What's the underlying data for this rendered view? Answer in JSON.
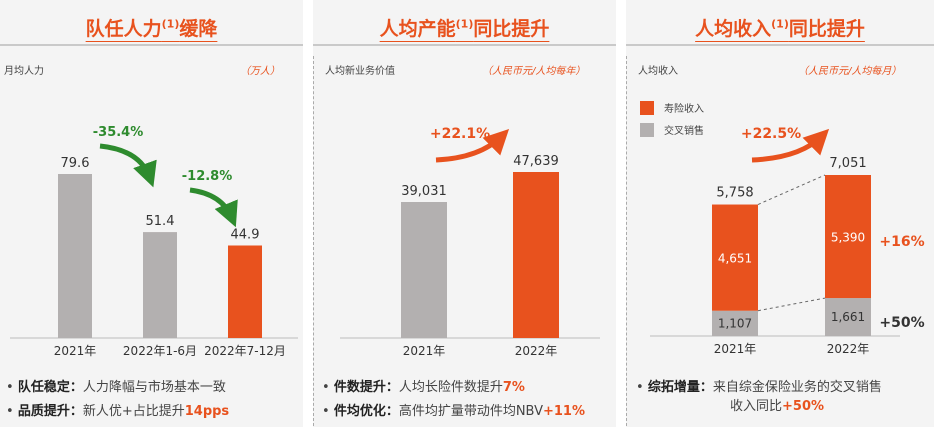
{
  "colors": {
    "accent": "#e8521e",
    "gray": "#b3b0b0",
    "green": "#2e8b2e",
    "text": "#333333"
  },
  "panel1": {
    "title": "队任人力",
    "title_sup": "(1)",
    "title_suffix": "缓降",
    "ylabel": "月均人力",
    "unit": "（万人）",
    "bullet1_label": "队任稳定：",
    "bullet1_text": "人力降幅与市场基本一致",
    "bullet2_label": "品质提升：",
    "bullet2_text": "新人优+占比提升",
    "bullet2_hl": "14pps"
  },
  "panel2": {
    "title": "人均产能",
    "title_sup": "(1)",
    "title_suffix": "同比提升",
    "ylabel": "人均新业务价值",
    "unit": "（人民币元/人均每年）",
    "bullet1_label": "件数提升：",
    "bullet1_text": "人均长险件数提升",
    "bullet1_hl": "7%",
    "bullet2_label": "件均优化：",
    "bullet2_text": "高件均扩量带动件均NBV",
    "bullet2_hl": "+11%"
  },
  "panel3": {
    "title": "人均收入",
    "title_sup": "(1)",
    "title_suffix": "同比提升",
    "ylabel": "人均收入",
    "unit": "（人民币元/人均每月）",
    "legend_insurance": "寿险收入",
    "legend_cross": "交叉销售",
    "bullet1_label": "综拓增量：",
    "bullet1_text": "来自综金保险业务的交叉销售",
    "bullet1_line2": "收入同比",
    "bullet1_hl": "+50%"
  },
  "chart_data": [
    {
      "type": "bar",
      "categories": [
        "2021年",
        "2022年1-6月",
        "2022年7-12月"
      ],
      "values": [
        79.6,
        51.4,
        44.9
      ],
      "highlight_index": 2,
      "annotations": [
        "-35.4%",
        "-12.8%"
      ],
      "ylabel": "月均人力",
      "unit": "（万人）"
    },
    {
      "type": "bar",
      "categories": [
        "2021年",
        "2022年"
      ],
      "values": [
        39031,
        47639
      ],
      "highlight_index": 1,
      "annotations": [
        "+22.1%"
      ],
      "ylabel": "人均新业务价值",
      "unit": "（人民币元/人均每年）"
    },
    {
      "type": "bar",
      "stacked": true,
      "categories": [
        "2021年",
        "2022年"
      ],
      "series": [
        {
          "name": "交叉销售",
          "values": [
            1107,
            1661
          ]
        },
        {
          "name": "寿险收入",
          "values": [
            4651,
            5390
          ]
        }
      ],
      "totals": [
        5758,
        7051
      ],
      "annotations": [
        "+22.5%",
        "+16%",
        "+50%"
      ],
      "ylabel": "人均收入",
      "unit": "（人民币元/人均每月）"
    }
  ]
}
